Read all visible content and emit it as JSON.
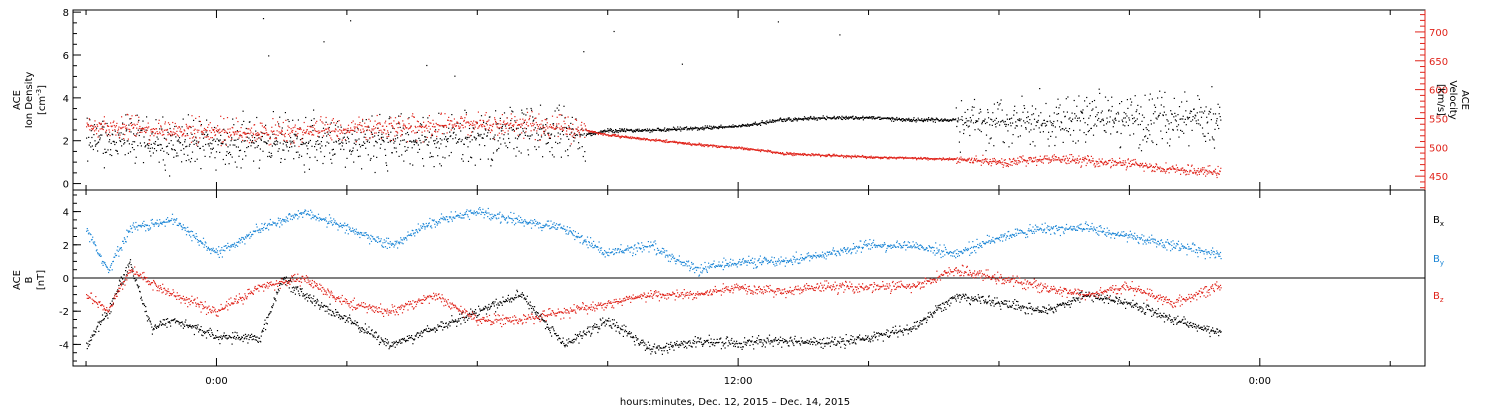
{
  "xlabel": "hours:minutes, Dec. 12, 2015 – Dec. 14, 2015",
  "colors": {
    "black": "#000000",
    "red": "#e0241b",
    "blue": "#1c86d6"
  },
  "chart_data": [
    {
      "type": "scatter",
      "title": "",
      "x_ticks": [
        "0:00",
        "12:00",
        "0:00"
      ],
      "x_tick_hours": [
        0,
        12,
        24
      ],
      "xlim_hours": [
        -3.3,
        27.8
      ],
      "left_axis": {
        "label_lines": [
          "ACE",
          "Ion Density"
        ],
        "unit": "[cm",
        "unit_sup": "-3",
        "unit_tail": "]",
        "ylim": [
          -0.3,
          8.1
        ],
        "ticks": [
          "0",
          "2",
          "4",
          "6",
          "8"
        ]
      },
      "right_axis": {
        "label_lines": [
          "ACE",
          "Velocity"
        ],
        "unit": "[km/s]",
        "color": "#e0241b",
        "ylim": [
          426,
          738
        ],
        "ticks": [
          "450",
          "500",
          "550",
          "600",
          "650",
          "700"
        ]
      },
      "series": [
        {
          "axis": "left",
          "color": "#000000",
          "points_desc": "ion density, hourly anchors (hour, cm^-3)",
          "x_hours": [
            -3.0,
            -2.0,
            -1.0,
            0.0,
            1.0,
            2.0,
            3.0,
            4.0,
            5.0,
            6.0,
            7.0,
            8.0,
            8.5,
            9.0,
            10.0,
            11.0,
            12.0,
            12.7,
            13.0,
            14.0,
            15.0,
            16.0,
            17.0,
            18.0,
            19.0,
            20.0,
            21.0,
            22.0,
            23.0
          ],
          "values": [
            2.0,
            2.0,
            1.8,
            1.9,
            2.0,
            1.9,
            2.0,
            2.0,
            2.0,
            2.2,
            2.4,
            2.3,
            2.3,
            2.5,
            2.5,
            2.6,
            2.7,
            2.9,
            3.0,
            3.1,
            3.1,
            3.0,
            3.0,
            2.9,
            2.9,
            3.0,
            3.0,
            3.1,
            3.0
          ]
        },
        {
          "axis": "right",
          "color": "#e0241b",
          "points_desc": "solar wind velocity, hourly anchors (hour, km/s)",
          "x_hours": [
            -3.0,
            -2.0,
            -1.0,
            0.0,
            1.0,
            2.0,
            3.0,
            4.0,
            5.0,
            6.0,
            7.0,
            8.0,
            8.5,
            9.0,
            10.0,
            11.0,
            12.0,
            12.7,
            13.0,
            14.0,
            15.0,
            16.0,
            17.0,
            18.0,
            19.0,
            20.0,
            21.0,
            22.0,
            23.0
          ],
          "values": [
            540,
            535,
            530,
            530,
            525,
            528,
            530,
            535,
            538,
            540,
            540,
            535,
            530,
            522,
            514,
            506,
            500,
            494,
            490,
            487,
            484,
            482,
            480,
            476,
            480,
            478,
            472,
            462,
            458
          ]
        }
      ]
    },
    {
      "type": "scatter",
      "title": "",
      "x_ticks": [
        "0:00",
        "12:00",
        "0:00"
      ],
      "x_tick_hours": [
        0,
        12,
        24
      ],
      "xlim_hours": [
        -3.3,
        27.8
      ],
      "left_axis": {
        "label_lines": [
          "ACE",
          "B"
        ],
        "unit": "[nT]",
        "ylim": [
          -5.3,
          5.3
        ],
        "ticks": [
          "-4",
          "-2",
          "0",
          "2",
          "4"
        ]
      },
      "zero_line": true,
      "series": [
        {
          "name": "B",
          "sub": "x",
          "color": "#000000",
          "points_desc": "Bx, hourly anchors (hour, nT)",
          "x_hours": [
            -3.0,
            -2.5,
            -2.0,
            -1.5,
            -1.0,
            0.0,
            1.0,
            1.5,
            2.0,
            3.0,
            4.0,
            5.0,
            6.0,
            7.0,
            8.0,
            9.0,
            10.0,
            11.0,
            12.0,
            13.0,
            14.0,
            15.0,
            16.0,
            17.0,
            18.0,
            19.0,
            20.0,
            21.0,
            22.0,
            23.0
          ],
          "values": [
            -4.0,
            -2.0,
            1.0,
            -3.0,
            -2.5,
            -3.5,
            -3.6,
            0.0,
            -1.0,
            -2.5,
            -4.0,
            -3.0,
            -2.0,
            -1.0,
            -4.0,
            -2.5,
            -4.3,
            -3.8,
            -3.9,
            -3.7,
            -3.9,
            -3.6,
            -3.0,
            -1.0,
            -1.5,
            -2.0,
            -1.0,
            -1.5,
            -2.5,
            -3.2
          ]
        },
        {
          "name": "B",
          "sub": "y",
          "color": "#1c86d6",
          "points_desc": "By, hourly anchors (hour, nT)",
          "x_hours": [
            -3.0,
            -2.5,
            -2.0,
            -1.0,
            0.0,
            1.0,
            2.0,
            3.0,
            4.0,
            5.0,
            6.0,
            7.0,
            8.0,
            9.0,
            10.0,
            11.0,
            12.0,
            13.0,
            14.0,
            15.0,
            16.0,
            17.0,
            18.0,
            19.0,
            20.0,
            21.0,
            22.0,
            23.0
          ],
          "values": [
            3.0,
            0.5,
            3.0,
            3.5,
            1.5,
            3.0,
            4.0,
            3.0,
            2.0,
            3.5,
            4.0,
            3.5,
            3.0,
            1.5,
            2.0,
            0.5,
            1.0,
            1.0,
            1.5,
            2.0,
            2.0,
            1.5,
            2.5,
            3.0,
            3.0,
            2.5,
            2.0,
            1.5
          ]
        },
        {
          "name": "B",
          "sub": "z",
          "color": "#e0241b",
          "points_desc": "Bz, hourly anchors (hour, nT)",
          "x_hours": [
            -3.0,
            -2.5,
            -2.0,
            -1.0,
            0.0,
            1.0,
            2.0,
            3.0,
            4.0,
            5.0,
            6.0,
            7.0,
            8.0,
            9.0,
            10.0,
            11.0,
            12.0,
            13.0,
            14.0,
            15.0,
            16.0,
            17.0,
            18.0,
            19.0,
            20.0,
            21.0,
            22.0,
            23.0
          ],
          "values": [
            -1.0,
            -2.0,
            0.5,
            -1.0,
            -2.0,
            -0.5,
            0.0,
            -1.5,
            -2.0,
            -1.0,
            -2.5,
            -2.5,
            -2.0,
            -1.5,
            -1.0,
            -1.0,
            -0.5,
            -0.8,
            -0.5,
            -0.5,
            -0.5,
            0.5,
            0.0,
            -0.5,
            -1.0,
            -0.5,
            -1.5,
            -0.5
          ]
        }
      ]
    }
  ]
}
